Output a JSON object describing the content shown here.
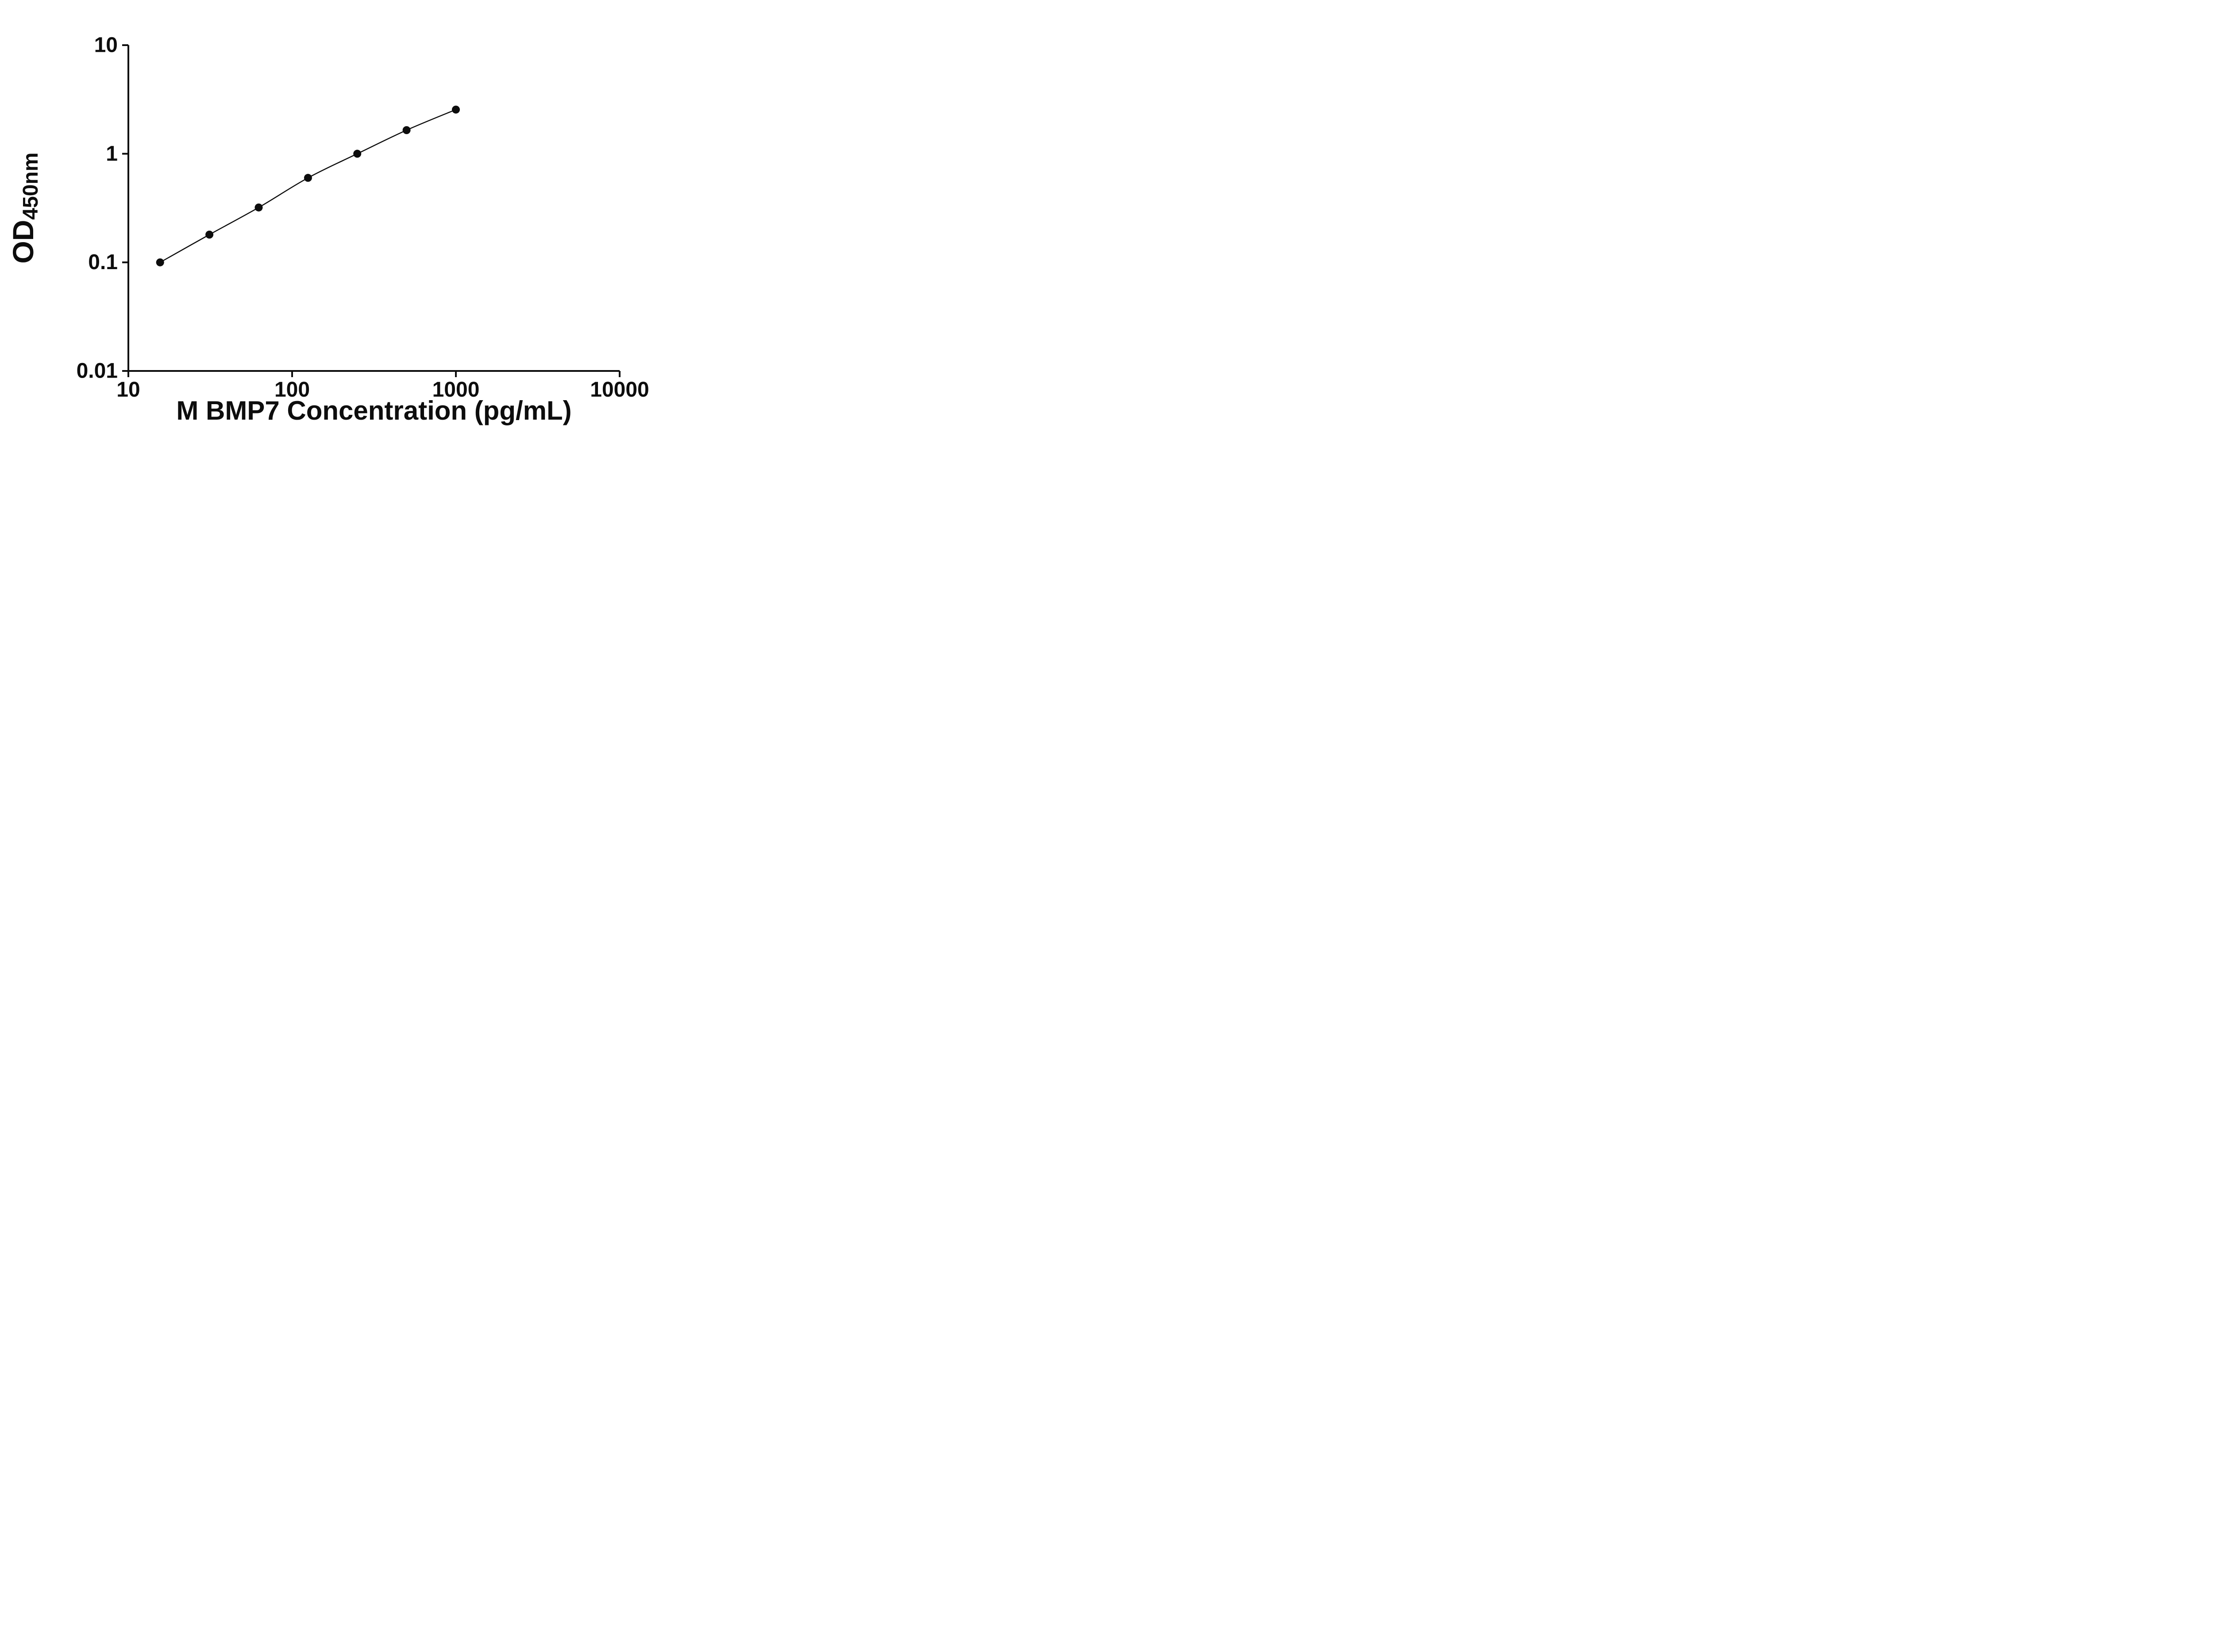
{
  "figure": {
    "background": "#ffffff",
    "ink_color": "#0d0d0d"
  },
  "chart_data": {
    "type": "line",
    "title": "",
    "xlabel": "M BMP7 Concentration (pg/mL)",
    "ylabel_main": "OD",
    "ylabel_sub": "450nm",
    "x_scale": "log10",
    "y_scale": "log10",
    "xlim": [
      10,
      10000
    ],
    "ylim": [
      0.01,
      10
    ],
    "x_ticks": [
      10,
      100,
      1000,
      10000
    ],
    "x_tick_labels": [
      "10",
      "100",
      "1000",
      "10000"
    ],
    "y_ticks": [
      0.01,
      0.1,
      1,
      10
    ],
    "y_tick_labels": [
      "0.01",
      "0.1",
      "1",
      "10"
    ],
    "grid": false,
    "legend": "none",
    "series": [
      {
        "name": "M BMP7",
        "x": [
          15.625,
          31.25,
          62.5,
          125,
          250,
          500,
          1000
        ],
        "y": [
          0.1,
          0.18,
          0.32,
          0.6,
          1.0,
          1.65,
          2.55
        ],
        "marker": "circle",
        "marker_color": "#0d0d0d",
        "line_color": "#0d0d0d"
      }
    ]
  }
}
